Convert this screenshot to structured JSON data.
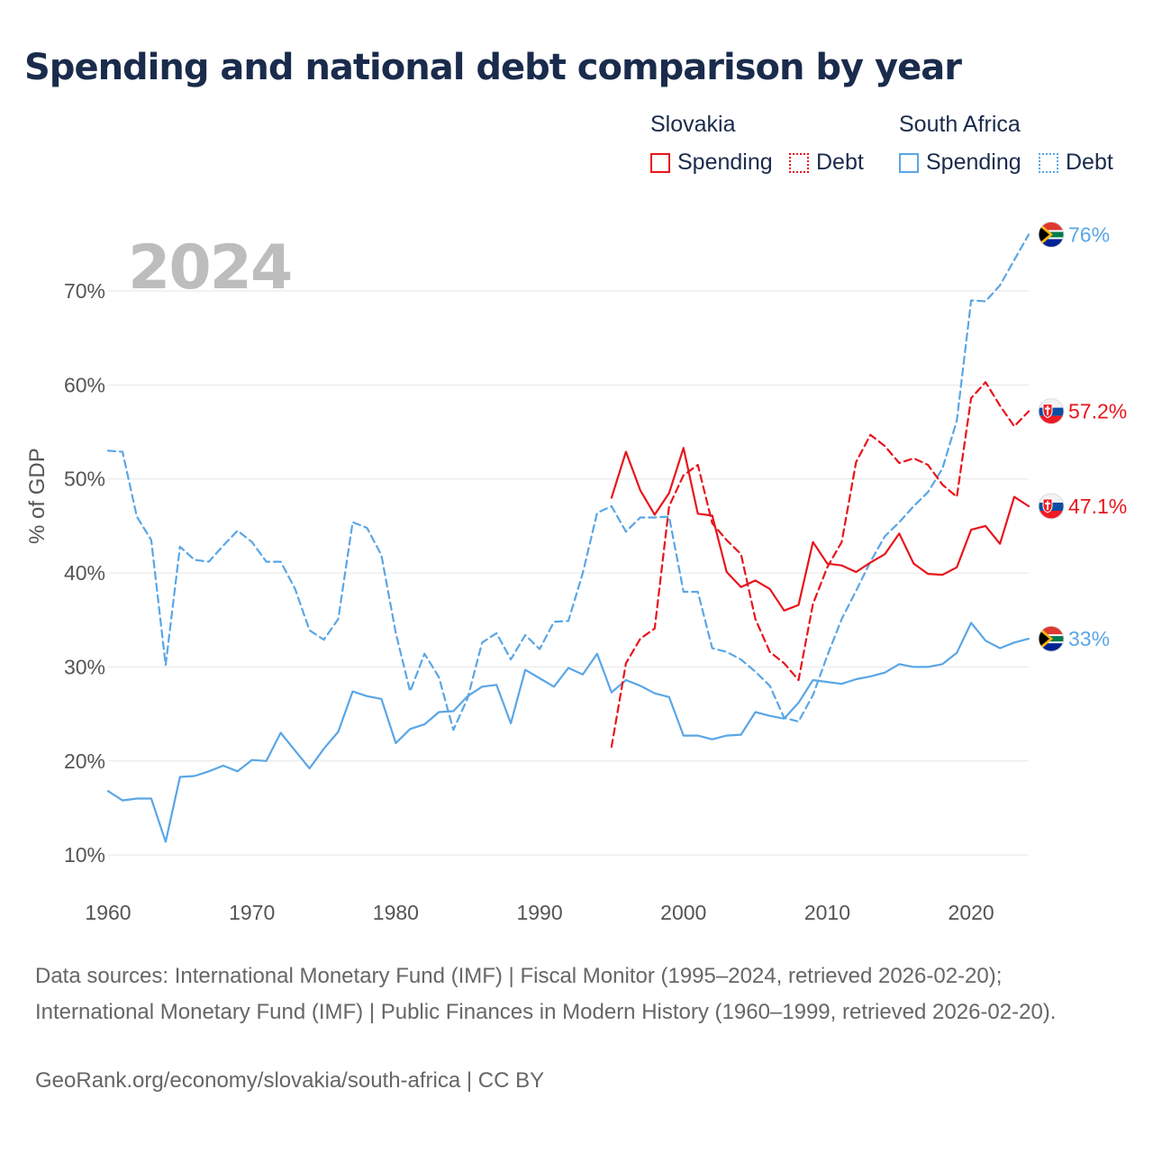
{
  "title": "Spending and national debt comparison by year",
  "year_badge": "2024",
  "legend": {
    "groups": [
      {
        "name": "Slovakia",
        "color": "#e8141b",
        "items": [
          "Spending",
          "Debt"
        ]
      },
      {
        "name": "South Africa",
        "color": "#5aa6e6",
        "items": [
          "Spending",
          "Debt"
        ]
      }
    ]
  },
  "end_labels": {
    "za_debt": "76%",
    "sk_debt": "57.2%",
    "sk_spending": "47.1%",
    "za_spending": "33%"
  },
  "footer": {
    "sources": "Data sources: International Monetary Fund (IMF) | Fiscal Monitor (1995–2024, retrieved 2026-02-20); International Monetary Fund (IMF) | Public Finances in Modern History (1960–1999, retrieved 2026-02-20).",
    "credit": "GeoRank.org/economy/slovakia/south-africa | CC BY"
  },
  "colors": {
    "slovakia": "#e8141b",
    "south_africa": "#5aa6e6",
    "grid": "#e6e6e6",
    "axis_text": "#555555"
  },
  "chart_data": {
    "type": "line",
    "title": "Spending and national debt comparison by year",
    "xlabel": "",
    "ylabel": "% of GDP",
    "xlim": [
      1960,
      2024
    ],
    "ylim": [
      8,
      77
    ],
    "x_ticks": [
      1960,
      1970,
      1980,
      1990,
      2000,
      2010,
      2020
    ],
    "y_ticks": [
      10,
      20,
      30,
      40,
      50,
      60,
      70
    ],
    "y_tick_labels": [
      "10%",
      "20%",
      "30%",
      "40%",
      "50%",
      "60%",
      "70%"
    ],
    "series": [
      {
        "name": "South Africa Debt",
        "country": "South Africa",
        "metric": "Debt",
        "style": "dashed",
        "x_start": 1960,
        "values": [
          53,
          52.9,
          46,
          43.5,
          30.2,
          42.8,
          41.4,
          41.2,
          42.9,
          44.5,
          43.3,
          41.2,
          41.2,
          38.3,
          33.9,
          32.9,
          35.1,
          45.4,
          44.8,
          41.9,
          33.6,
          27.4,
          31.4,
          28.9,
          23.3,
          26.7,
          32.6,
          33.6,
          30.8,
          33.4,
          31.9,
          34.8,
          34.9,
          40,
          46.4,
          47.1,
          44.4,
          45.9,
          45.9,
          46,
          38,
          38,
          32,
          31.6,
          30.8,
          29.5,
          28,
          24.6,
          24.2,
          27,
          31.2,
          35.1,
          38.1,
          41.2,
          43.9,
          45.4,
          47.1,
          48.6,
          51.1,
          56.2,
          69,
          68.9,
          70.6,
          73.3,
          76
        ]
      },
      {
        "name": "South Africa Spending",
        "country": "South Africa",
        "metric": "Spending",
        "style": "solid",
        "x_start": 1960,
        "values": [
          16.8,
          15.8,
          16,
          16,
          11.4,
          18.3,
          18.4,
          18.9,
          19.5,
          18.9,
          20.1,
          20,
          23,
          21.1,
          19.2,
          21.3,
          23.1,
          27.4,
          26.9,
          26.6,
          21.9,
          23.4,
          23.9,
          25.2,
          25.3,
          26.9,
          27.9,
          28.1,
          24,
          29.7,
          28.8,
          27.9,
          29.9,
          29.2,
          31.4,
          27.3,
          28.6,
          28,
          27.2,
          26.8,
          22.7,
          22.7,
          22.3,
          22.7,
          22.8,
          25.2,
          24.8,
          24.5,
          26.2,
          28.6,
          28.4,
          28.2,
          28.7,
          29,
          29.4,
          30.3,
          30,
          30,
          30.3,
          31.5,
          34.7,
          32.8,
          32,
          32.6,
          33
        ]
      },
      {
        "name": "Slovakia Debt",
        "country": "Slovakia",
        "metric": "Debt",
        "style": "dashed",
        "x_start": 1995,
        "values": [
          21.5,
          30.4,
          33,
          34.1,
          47.1,
          50.4,
          51.5,
          45.3,
          43.5,
          42,
          35.1,
          31.6,
          30.4,
          28.6,
          36.7,
          40.6,
          43.3,
          51.8,
          54.7,
          53.5,
          51.7,
          52.2,
          51.5,
          49.4,
          48.1,
          58.6,
          60.3,
          57.8,
          55.6,
          57.2
        ]
      },
      {
        "name": "Slovakia Spending",
        "country": "Slovakia",
        "metric": "Spending",
        "style": "solid",
        "x_start": 1995,
        "values": [
          48,
          52.9,
          48.8,
          46.2,
          48.5,
          53.3,
          46.3,
          46.1,
          40.1,
          38.5,
          39.2,
          38.3,
          36,
          36.6,
          43.3,
          41,
          40.8,
          40.1,
          41.1,
          42,
          44.2,
          41,
          39.9,
          39.8,
          40.6,
          44.6,
          45,
          43.1,
          48.1,
          47.1
        ]
      }
    ]
  }
}
